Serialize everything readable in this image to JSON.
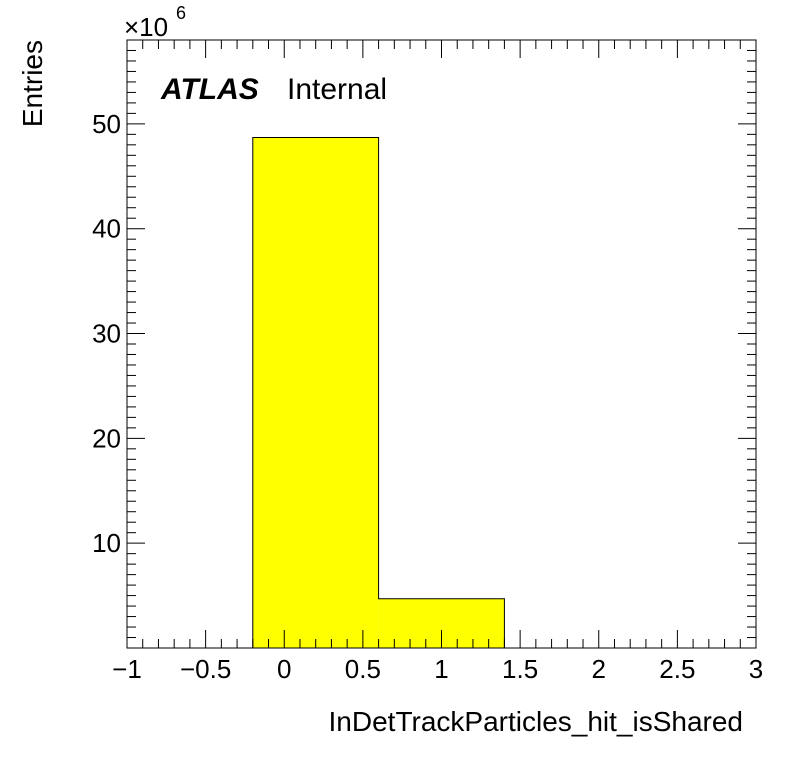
{
  "chart_data": {
    "type": "bar",
    "title": "",
    "xlabel": "InDetTrackParticles_hit_isShared",
    "ylabel": "Entries",
    "y_multiplier_label": "×10",
    "y_multiplier_exponent": "6",
    "xlim": [
      -1,
      3
    ],
    "ylim": [
      0,
      58
    ],
    "x_ticks": [
      -1,
      -0.5,
      0,
      0.5,
      1,
      1.5,
      2,
      2.5,
      3
    ],
    "x_tick_labels": [
      "−1",
      "−0.5",
      "0",
      "0.5",
      "1",
      "1.5",
      "2",
      "2.5",
      "3"
    ],
    "y_ticks": [
      10,
      20,
      30,
      40,
      50
    ],
    "y_tick_labels": [
      "10",
      "20",
      "30",
      "40",
      "50"
    ],
    "bins": [
      {
        "low": -0.2,
        "high": 0.6,
        "value": 48.7
      },
      {
        "low": 0.6,
        "high": 1.4,
        "value": 4.7
      }
    ],
    "fill_color": "#ffff00",
    "line_color": "#000000",
    "grid": false,
    "legend": "none",
    "labels": {
      "experiment": "ATLAS",
      "status": "Internal"
    }
  }
}
